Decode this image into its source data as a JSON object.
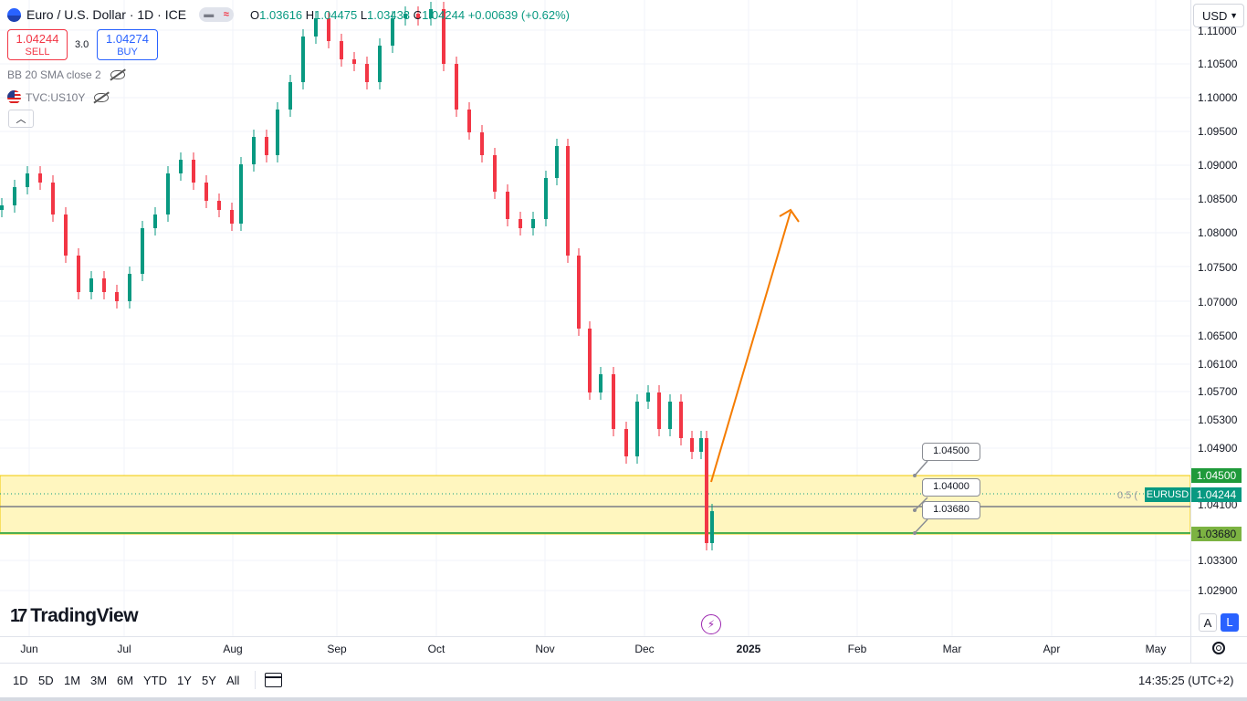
{
  "symbol": {
    "title": "Euro / U.S. Dollar · 1D · ICE",
    "market_status_icon": "market-closed-icon",
    "ohlc": [
      {
        "k": "O",
        "v": "1.03616"
      },
      {
        "k": "H",
        "v": "1.04475"
      },
      {
        "k": "L",
        "v": "1.03433"
      },
      {
        "k": "C",
        "v": "1.04244"
      }
    ],
    "change": "+0.00639 (+0.62%)"
  },
  "trade": {
    "sell_price": "1.04244",
    "sell_label": "SELL",
    "spread": "3.0",
    "buy_price": "1.04274",
    "buy_label": "BUY"
  },
  "indicators": [
    {
      "label": "BB 20 SMA close 2",
      "icon": "eye-off-icon"
    },
    {
      "label": "TVC:US10Y",
      "icon": "us-flag-icon"
    }
  ],
  "currency": "USD",
  "price_axis": {
    "labels": [
      "1.11000",
      "1.10500",
      "1.10000",
      "1.09500",
      "1.09000",
      "1.08500",
      "1.08000",
      "1.07500",
      "1.07000",
      "1.06500",
      "1.06100",
      "1.05700",
      "1.05300",
      "1.04900",
      "1.04100",
      "1.03300",
      "1.02900"
    ],
    "tag_high": "1.04500",
    "tag_current": "1.04244",
    "tag_low": "1.03680",
    "symbol_tag": "EURUSD",
    "fib_label": "0.5 (",
    "colors": {
      "zone_fill": "#fff6bf",
      "zone_border": "#f0c800",
      "low_line": "#4caf50",
      "mid_line": "#787b86",
      "arrow": "#f57c00",
      "up": "#089981",
      "down": "#f23645"
    }
  },
  "callouts": [
    "1.04500",
    "1.04000",
    "1.03680"
  ],
  "time_axis": [
    {
      "label": "Jun",
      "bold": false
    },
    {
      "label": "Jul",
      "bold": false
    },
    {
      "label": "Aug",
      "bold": false
    },
    {
      "label": "Sep",
      "bold": false
    },
    {
      "label": "Oct",
      "bold": false
    },
    {
      "label": "Nov",
      "bold": false
    },
    {
      "label": "Dec",
      "bold": false
    },
    {
      "label": "2025",
      "bold": true
    },
    {
      "label": "Feb",
      "bold": false
    },
    {
      "label": "Mar",
      "bold": false
    },
    {
      "label": "Apr",
      "bold": false
    },
    {
      "label": "May",
      "bold": false
    }
  ],
  "logo_text": "TradingView",
  "scale_buttons": {
    "auto": "A",
    "log": "L"
  },
  "ranges": [
    "1D",
    "5D",
    "1M",
    "3M",
    "6M",
    "YTD",
    "1Y",
    "5Y",
    "All"
  ],
  "clock": "14:35:25 (UTC+2)"
}
